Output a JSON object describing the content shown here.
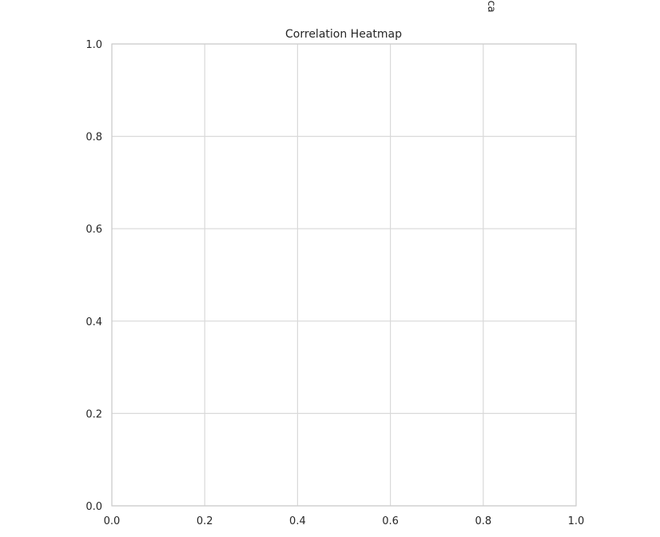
{
  "chart_data": {
    "type": "heatmap",
    "title": "Correlation Heatmap",
    "xlabel": "",
    "ylabel": "",
    "xlim": [
      0.0,
      1.0
    ],
    "ylim": [
      0.0,
      1.0
    ],
    "x_ticks": [
      "0.0",
      "0.2",
      "0.4",
      "0.6",
      "0.8",
      "1.0"
    ],
    "y_ticks": [
      "0.0",
      "0.2",
      "0.4",
      "0.6",
      "0.8",
      "1.0"
    ],
    "grid": true,
    "cells": [],
    "stray_label": "ca"
  },
  "colors": {
    "background": "#ffffff",
    "axes_face": "#ffffff",
    "grid": "#d9d9d9",
    "spine": "#cccccc",
    "text": "#262626"
  }
}
